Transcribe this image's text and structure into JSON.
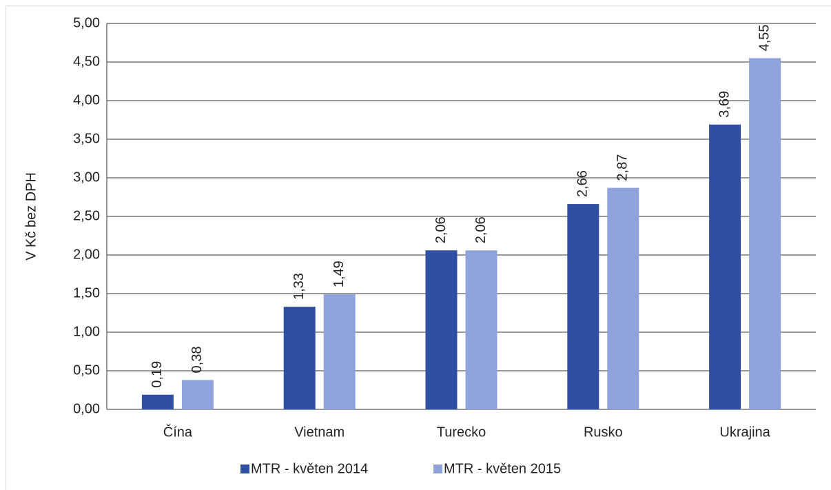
{
  "chart_data": {
    "type": "bar",
    "y_axis_label": "V Kč bez DPH",
    "categories": [
      "Čína",
      "Vietnam",
      "Turecko",
      "Rusko",
      "Ukrajina"
    ],
    "series": [
      {
        "name": "MTR - květen 2014",
        "color": "#2f4fa2",
        "values": [
          0.19,
          1.33,
          2.06,
          2.66,
          3.69
        ],
        "value_labels": [
          "0,19",
          "1,33",
          "2,06",
          "2,66",
          "3,69"
        ]
      },
      {
        "name": "MTR - květen 2015",
        "color": "#8ea3dc",
        "values": [
          0.38,
          1.49,
          2.06,
          2.87,
          4.55
        ],
        "value_labels": [
          "0,38",
          "1,49",
          "2,06",
          "2,87",
          "4,55"
        ]
      }
    ],
    "ylim": [
      0,
      5
    ],
    "yticks": [
      {
        "value": 0,
        "label": "0,00"
      },
      {
        "value": 0.5,
        "label": "0,50"
      },
      {
        "value": 1,
        "label": "1,00"
      },
      {
        "value": 1.5,
        "label": "1,50"
      },
      {
        "value": 2,
        "label": "2,00"
      },
      {
        "value": 2.5,
        "label": "2,50"
      },
      {
        "value": 3,
        "label": "3,00"
      },
      {
        "value": 3.5,
        "label": "3,50"
      },
      {
        "value": 4,
        "label": "4,00"
      },
      {
        "value": 4.5,
        "label": "4,50"
      },
      {
        "value": 5,
        "label": "5,00"
      }
    ],
    "grid": true,
    "legend": "bottom"
  }
}
